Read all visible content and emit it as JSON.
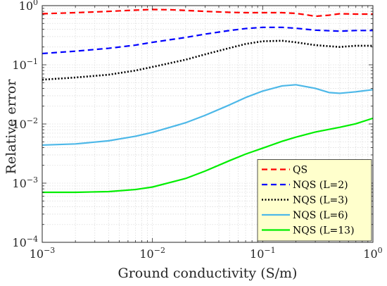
{
  "chart_data": {
    "type": "line",
    "xscale": "log",
    "yscale": "log",
    "xlim": [
      0.001,
      1
    ],
    "ylim": [
      0.0001,
      1
    ],
    "xlabel": "Ground conductivity (S/m)",
    "ylabel": "Relative error",
    "grid": true,
    "minor_grid": true,
    "legend_position": "bottom-right",
    "legend_background": "#ffffcc",
    "x_ticks": [
      {
        "base": "10",
        "exp": "−3"
      },
      {
        "base": "10",
        "exp": "−2"
      },
      {
        "base": "10",
        "exp": "−1"
      },
      {
        "base": "10",
        "exp": "0"
      }
    ],
    "y_ticks": [
      {
        "base": "10",
        "exp": "−4"
      },
      {
        "base": "10",
        "exp": "−3"
      },
      {
        "base": "10",
        "exp": "−2"
      },
      {
        "base": "10",
        "exp": "−1"
      },
      {
        "base": "10",
        "exp": "0"
      }
    ],
    "series": [
      {
        "name": "QS",
        "color": "#ff0000",
        "style": "dashed",
        "x": [
          0.001,
          0.002,
          0.004,
          0.007,
          0.01,
          0.015,
          0.02,
          0.03,
          0.05,
          0.07,
          0.1,
          0.15,
          0.2,
          0.25,
          0.3,
          0.4,
          0.5,
          0.7,
          1.0
        ],
        "y": [
          0.73,
          0.76,
          0.8,
          0.84,
          0.86,
          0.85,
          0.83,
          0.8,
          0.77,
          0.76,
          0.76,
          0.76,
          0.74,
          0.7,
          0.66,
          0.69,
          0.73,
          0.72,
          0.72
        ]
      },
      {
        "name": "NQS (L=2)",
        "color": "#0000ff",
        "style": "dashed",
        "x": [
          0.001,
          0.002,
          0.004,
          0.007,
          0.01,
          0.02,
          0.03,
          0.05,
          0.07,
          0.1,
          0.15,
          0.2,
          0.3,
          0.5,
          0.7,
          1.0
        ],
        "y": [
          0.155,
          0.17,
          0.19,
          0.215,
          0.24,
          0.29,
          0.33,
          0.38,
          0.41,
          0.43,
          0.43,
          0.415,
          0.385,
          0.37,
          0.38,
          0.38
        ]
      },
      {
        "name": "NQS (L=3)",
        "color": "#000000",
        "style": "dotted",
        "x": [
          0.001,
          0.002,
          0.004,
          0.007,
          0.01,
          0.02,
          0.03,
          0.05,
          0.07,
          0.1,
          0.15,
          0.2,
          0.3,
          0.5,
          0.7,
          1.0
        ],
        "y": [
          0.056,
          0.061,
          0.068,
          0.08,
          0.092,
          0.122,
          0.15,
          0.192,
          0.225,
          0.25,
          0.255,
          0.24,
          0.215,
          0.2,
          0.21,
          0.21
        ]
      },
      {
        "name": "NQS (L=6)",
        "color": "#4db8e8",
        "style": "solid",
        "x": [
          0.001,
          0.002,
          0.004,
          0.007,
          0.01,
          0.02,
          0.03,
          0.05,
          0.07,
          0.1,
          0.15,
          0.2,
          0.3,
          0.4,
          0.5,
          0.7,
          1.0
        ],
        "y": [
          0.0044,
          0.0046,
          0.0052,
          0.0062,
          0.0072,
          0.0105,
          0.014,
          0.021,
          0.028,
          0.036,
          0.044,
          0.046,
          0.04,
          0.034,
          0.033,
          0.035,
          0.038
        ]
      },
      {
        "name": "NQS (L=13)",
        "color": "#00ee00",
        "style": "solid",
        "x": [
          0.001,
          0.002,
          0.004,
          0.007,
          0.01,
          0.02,
          0.03,
          0.05,
          0.07,
          0.1,
          0.15,
          0.2,
          0.3,
          0.5,
          0.7,
          1.0
        ],
        "y": [
          0.0007,
          0.0007,
          0.00072,
          0.00078,
          0.00086,
          0.0012,
          0.0016,
          0.0024,
          0.0031,
          0.0039,
          0.0051,
          0.006,
          0.0073,
          0.0088,
          0.0101,
          0.0125
        ]
      }
    ]
  }
}
